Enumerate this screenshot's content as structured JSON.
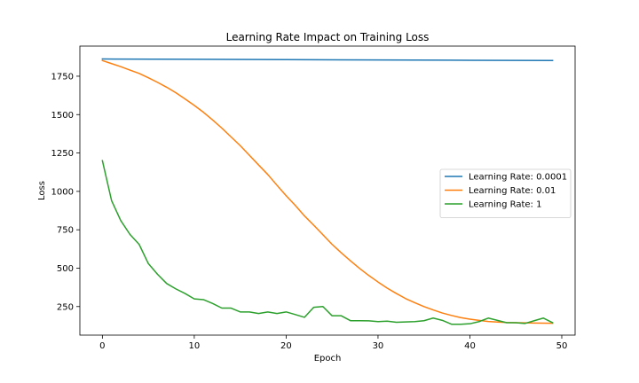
{
  "chart_data": {
    "type": "line",
    "title": "Learning Rate Impact on Training Loss",
    "xlabel": "Epoch",
    "ylabel": "Loss",
    "xlim": [
      -2.45,
      51.45
    ],
    "ylim": [
      64,
      1946
    ],
    "xticks": [
      0,
      10,
      20,
      30,
      40,
      50
    ],
    "yticks": [
      250,
      500,
      750,
      1000,
      1250,
      1500,
      1750
    ],
    "legend_position": "center-right",
    "series": [
      {
        "name": "Learning Rate: 0.0001",
        "color": "#1f77b4",
        "x": [
          0,
          10,
          20,
          30,
          40,
          49
        ],
        "values": [
          1862,
          1860,
          1858,
          1856,
          1854,
          1852
        ]
      },
      {
        "name": "Learning Rate: 0.01",
        "color": "#ff7f0e",
        "x": [
          0,
          1,
          2,
          3,
          4,
          5,
          6,
          7,
          8,
          9,
          10,
          11,
          12,
          13,
          14,
          15,
          16,
          17,
          18,
          19,
          20,
          21,
          22,
          23,
          24,
          25,
          26,
          27,
          28,
          29,
          30,
          31,
          32,
          33,
          34,
          35,
          36,
          37,
          38,
          39,
          40,
          41,
          42,
          43,
          44,
          45,
          46,
          47,
          48,
          49
        ],
        "values": [
          1852,
          1832,
          1812,
          1790,
          1768,
          1740,
          1710,
          1678,
          1642,
          1602,
          1560,
          1515,
          1465,
          1412,
          1355,
          1298,
          1235,
          1172,
          1110,
          1040,
          972,
          908,
          840,
          780,
          718,
          655,
          600,
          548,
          498,
          452,
          410,
          370,
          335,
          302,
          275,
          250,
          228,
          208,
          192,
          178,
          168,
          160,
          153,
          149,
          146,
          145,
          144,
          143,
          142,
          141
        ]
      },
      {
        "name": "Learning Rate: 1",
        "color": "#2ca02c",
        "x": [
          0,
          1,
          2,
          3,
          4,
          5,
          6,
          7,
          8,
          9,
          10,
          11,
          12,
          13,
          14,
          15,
          16,
          17,
          18,
          19,
          20,
          21,
          22,
          23,
          24,
          25,
          26,
          27,
          28,
          29,
          30,
          31,
          32,
          33,
          34,
          35,
          36,
          37,
          38,
          39,
          40,
          41,
          42,
          43,
          44,
          45,
          46,
          47,
          48,
          49
        ],
        "values": [
          1200,
          940,
          810,
          720,
          655,
          530,
          460,
          400,
          365,
          335,
          300,
          295,
          270,
          240,
          240,
          215,
          215,
          205,
          215,
          205,
          215,
          198,
          180,
          245,
          250,
          190,
          190,
          158,
          158,
          157,
          152,
          155,
          148,
          150,
          152,
          158,
          175,
          160,
          135,
          135,
          138,
          152,
          175,
          160,
          145,
          145,
          140,
          158,
          175,
          145
        ]
      }
    ]
  }
}
